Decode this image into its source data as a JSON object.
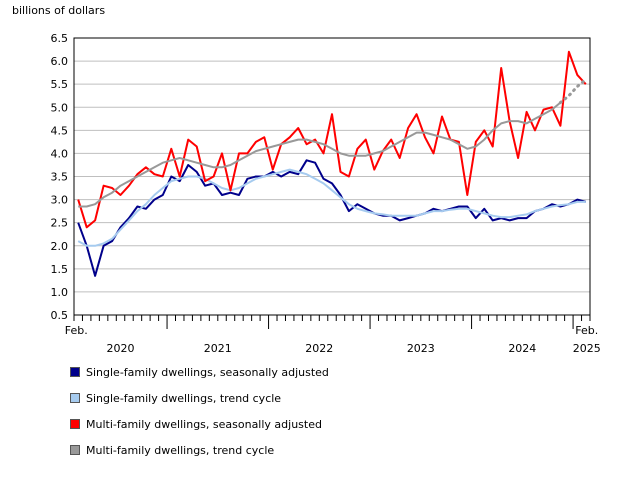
{
  "chart_data": {
    "type": "line",
    "unit_label": "billions of dollars",
    "ylim": [
      0.5,
      6.5
    ],
    "yticks": [
      "6.5",
      "6.0",
      "5.5",
      "5.0",
      "4.5",
      "4.0",
      "3.5",
      "3.0",
      "2.5",
      "2.0",
      "1.5",
      "1.0",
      "0.5"
    ],
    "x_start_label": [
      "Feb."
    ],
    "x_end_label": [
      "Feb.",
      "2025"
    ],
    "year_labels": [
      "2020",
      "2021",
      "2022",
      "2023",
      "2024"
    ],
    "x": [
      "2020-02",
      "2020-03",
      "2020-04",
      "2020-05",
      "2020-06",
      "2020-07",
      "2020-08",
      "2020-09",
      "2020-10",
      "2020-11",
      "2020-12",
      "2021-01",
      "2021-02",
      "2021-03",
      "2021-04",
      "2021-05",
      "2021-06",
      "2021-07",
      "2021-08",
      "2021-09",
      "2021-10",
      "2021-11",
      "2021-12",
      "2022-01",
      "2022-02",
      "2022-03",
      "2022-04",
      "2022-05",
      "2022-06",
      "2022-07",
      "2022-08",
      "2022-09",
      "2022-10",
      "2022-11",
      "2022-12",
      "2023-01",
      "2023-02",
      "2023-03",
      "2023-04",
      "2023-05",
      "2023-06",
      "2023-07",
      "2023-08",
      "2023-09",
      "2023-10",
      "2023-11",
      "2023-12",
      "2024-01",
      "2024-02",
      "2024-03",
      "2024-04",
      "2024-05",
      "2024-06",
      "2024-07",
      "2024-08",
      "2024-09",
      "2024-10",
      "2024-11",
      "2024-12",
      "2025-01",
      "2025-02"
    ],
    "series": [
      {
        "name": "Single-family dwellings, seasonally adjusted",
        "color": "#00008b",
        "style": "solid",
        "values": [
          2.5,
          2.0,
          1.35,
          2.0,
          2.1,
          2.4,
          2.6,
          2.85,
          2.8,
          3.0,
          3.1,
          3.5,
          3.4,
          3.75,
          3.6,
          3.3,
          3.35,
          3.1,
          3.15,
          3.1,
          3.45,
          3.5,
          3.5,
          3.6,
          3.5,
          3.6,
          3.55,
          3.85,
          3.8,
          3.45,
          3.35,
          3.1,
          2.75,
          2.9,
          2.8,
          2.7,
          2.65,
          2.65,
          2.55,
          2.6,
          2.65,
          2.7,
          2.8,
          2.75,
          2.8,
          2.85,
          2.85,
          2.6,
          2.8,
          2.55,
          2.6,
          2.55,
          2.6,
          2.6,
          2.75,
          2.8,
          2.9,
          2.85,
          2.9,
          3.0,
          2.95
        ]
      },
      {
        "name": "Single-family dwellings, trend cycle",
        "color": "#a6cbef",
        "style": "solid",
        "values": [
          2.1,
          2.0,
          2.0,
          2.05,
          2.15,
          2.35,
          2.55,
          2.75,
          2.9,
          3.1,
          3.25,
          3.4,
          3.45,
          3.5,
          3.5,
          3.45,
          3.35,
          3.25,
          3.2,
          3.25,
          3.35,
          3.45,
          3.5,
          3.55,
          3.6,
          3.65,
          3.6,
          3.55,
          3.45,
          3.35,
          3.2,
          3.05,
          2.9,
          2.8,
          2.75,
          2.7,
          2.68,
          2.65,
          2.65,
          2.65,
          2.65,
          2.7,
          2.75,
          2.75,
          2.78,
          2.8,
          2.8,
          2.75,
          2.7,
          2.65,
          2.62,
          2.62,
          2.65,
          2.68,
          2.75,
          2.8,
          2.85,
          2.88,
          2.9,
          2.95,
          2.95
        ]
      },
      {
        "name": "Multi-family dwellings, seasonally adjusted",
        "color": "#ff0000",
        "style": "solid",
        "values": [
          3.0,
          2.4,
          2.55,
          3.3,
          3.25,
          3.1,
          3.3,
          3.55,
          3.7,
          3.55,
          3.5,
          4.1,
          3.5,
          4.3,
          4.15,
          3.4,
          3.5,
          4.0,
          3.2,
          4.0,
          4.0,
          4.25,
          4.35,
          3.65,
          4.2,
          4.35,
          4.55,
          4.2,
          4.3,
          4.0,
          4.85,
          3.6,
          3.5,
          4.1,
          4.3,
          3.65,
          4.05,
          4.3,
          3.9,
          4.55,
          4.85,
          4.35,
          4.0,
          4.8,
          4.3,
          4.25,
          3.1,
          4.25,
          4.5,
          4.15,
          5.85,
          4.7,
          3.9,
          4.9,
          4.5,
          4.95,
          5.0,
          4.6,
          6.2,
          5.7,
          5.5
        ]
      },
      {
        "name": "Multi-family dwellings, trend cycle",
        "color": "#999999",
        "style": "mixed",
        "values": [
          2.85,
          2.85,
          2.9,
          3.05,
          3.15,
          3.3,
          3.4,
          3.5,
          3.6,
          3.7,
          3.8,
          3.85,
          3.9,
          3.85,
          3.8,
          3.75,
          3.7,
          3.7,
          3.75,
          3.85,
          3.95,
          4.05,
          4.1,
          4.15,
          4.2,
          4.25,
          4.3,
          4.3,
          4.25,
          4.2,
          4.1,
          4.0,
          3.95,
          3.95,
          3.95,
          4.0,
          4.05,
          4.15,
          4.25,
          4.35,
          4.45,
          4.45,
          4.4,
          4.35,
          4.3,
          4.2,
          4.1,
          4.15,
          4.3,
          4.5,
          4.65,
          4.7,
          4.7,
          4.65,
          4.75,
          4.85,
          4.95,
          5.1,
          5.25,
          5.45,
          5.6
        ],
        "dotted_from_index": 57
      }
    ]
  },
  "legend": {
    "items": [
      {
        "label": "Single-family dwellings, seasonally adjusted",
        "color": "#00008b"
      },
      {
        "label": "Single-family dwellings, trend cycle",
        "color": "#a6cbef"
      },
      {
        "label": "Multi-family dwellings, seasonally adjusted",
        "color": "#ff0000"
      },
      {
        "label": "Multi-family dwellings, trend cycle",
        "color": "#999999"
      }
    ]
  }
}
